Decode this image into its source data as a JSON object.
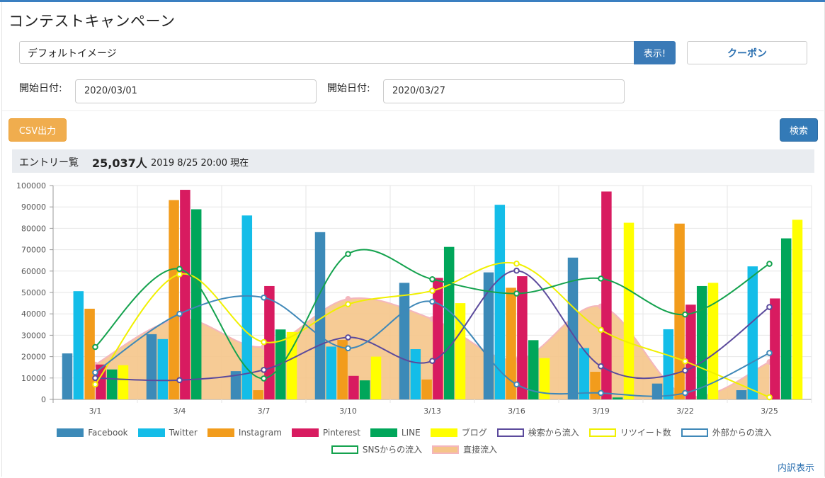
{
  "header": {
    "title": "コンテストキャンペーン"
  },
  "controls": {
    "image_select": "デフォルトイメージ",
    "show_label": "表示!",
    "coupon_label": "クーポン",
    "start_label_1": "開始日付:",
    "start_value_1": "2020/03/01",
    "start_label_2": "開始日付:",
    "start_value_2": "2020/03/27",
    "csv_label": "CSV出力",
    "search_label": "検索"
  },
  "entry": {
    "label": "エントリー覧",
    "count": "25,037人",
    "as_of": "2019 8/25 20:00 現在"
  },
  "footer": {
    "detail_link": "内訳表示"
  },
  "colors": {
    "検索から流入": "#5b4a9c",
    "リツイート数": "#f0f000",
    "外部からの流入": "#3f88b8",
    "SNSからの流入": "#14a24e",
    "直接流入": "#f5c58a",
    "Facebook": "#3c8ab8",
    "Twitter": "#14bde8",
    "Instagram": "#f29c1c",
    "Pinterest": "#d81b60",
    "LINE": "#00a65a",
    "ブログ": "#ffff00"
  },
  "chart_data": {
    "type": "bar",
    "categories": [
      "3/1",
      "3/4",
      "3/7",
      "3/10",
      "3/13",
      "3/16",
      "3/19",
      "3/22",
      "3/25"
    ],
    "ylim": [
      0,
      100000
    ],
    "yticks": [
      0,
      10000,
      20000,
      30000,
      40000,
      50000,
      60000,
      70000,
      80000,
      90000,
      100000
    ],
    "grid": true,
    "legend_position": "bottom",
    "series": [
      {
        "name": "Facebook",
        "kind": "bar",
        "values": [
          21500,
          30500,
          13200,
          78200,
          54500,
          59400,
          66300,
          7400,
          4300
        ]
      },
      {
        "name": "Twitter",
        "kind": "bar",
        "values": [
          50600,
          28200,
          86000,
          24700,
          23500,
          91000,
          24000,
          32800,
          62200
        ]
      },
      {
        "name": "Instagram",
        "kind": "bar",
        "values": [
          42400,
          93200,
          4300,
          27800,
          9300,
          52200,
          12900,
          82200,
          0
        ]
      },
      {
        "name": "Pinterest",
        "kind": "bar",
        "values": [
          16300,
          98000,
          53000,
          11000,
          56800,
          57600,
          97200,
          44300,
          47200
        ]
      },
      {
        "name": "LINE",
        "kind": "bar",
        "values": [
          14000,
          88900,
          32700,
          8900,
          71300,
          27700,
          900,
          53000,
          75300
        ]
      },
      {
        "name": "ブログ",
        "kind": "bar",
        "values": [
          16000,
          0,
          31500,
          20000,
          45000,
          19300,
          82600,
          54500,
          84000
        ]
      },
      {
        "name": "検索から流入",
        "kind": "line",
        "values": [
          10000,
          9000,
          13800,
          29000,
          18000,
          60200,
          15500,
          13500,
          43200
        ]
      },
      {
        "name": "リツイート数",
        "kind": "line",
        "values": [
          7000,
          58500,
          26800,
          44500,
          50800,
          63500,
          32500,
          17800,
          1000
        ]
      },
      {
        "name": "外部からの流入",
        "kind": "line",
        "values": [
          12600,
          40000,
          47600,
          23900,
          45700,
          7000,
          3000,
          3000,
          21700
        ]
      },
      {
        "name": "SNSからの流入",
        "kind": "line",
        "values": [
          24500,
          61000,
          9800,
          68000,
          56200,
          49500,
          56500,
          39700,
          63400
        ]
      },
      {
        "name": "直接流入",
        "kind": "area",
        "values": [
          16300,
          37600,
          24600,
          47000,
          37600,
          18400,
          43500,
          1900,
          17500
        ]
      }
    ]
  }
}
